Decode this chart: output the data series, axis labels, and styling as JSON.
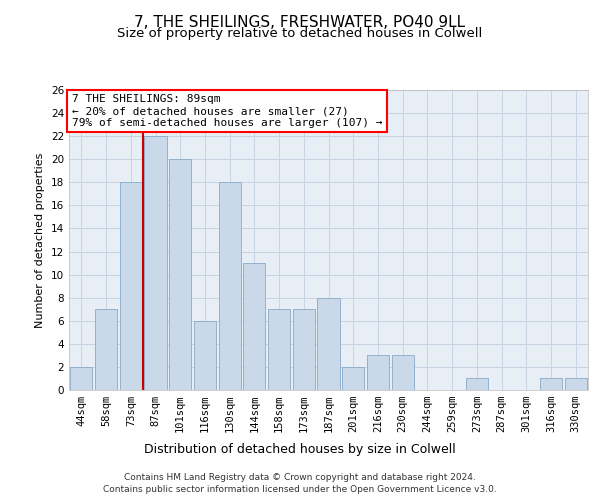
{
  "title1": "7, THE SHEILINGS, FRESHWATER, PO40 9LL",
  "title2": "Size of property relative to detached houses in Colwell",
  "xlabel": "Distribution of detached houses by size in Colwell",
  "ylabel": "Number of detached properties",
  "categories": [
    "44sqm",
    "58sqm",
    "73sqm",
    "87sqm",
    "101sqm",
    "116sqm",
    "130sqm",
    "144sqm",
    "158sqm",
    "173sqm",
    "187sqm",
    "201sqm",
    "216sqm",
    "230sqm",
    "244sqm",
    "259sqm",
    "273sqm",
    "287sqm",
    "301sqm",
    "316sqm",
    "330sqm"
  ],
  "values": [
    2,
    7,
    18,
    22,
    20,
    6,
    18,
    11,
    7,
    7,
    8,
    2,
    3,
    3,
    0,
    0,
    1,
    0,
    0,
    1,
    1
  ],
  "bar_color": "#c9d9ea",
  "bar_edgecolor": "#88aac8",
  "red_line_index": 3,
  "annotation_line1": "7 THE SHEILINGS: 89sqm",
  "annotation_line2": "← 20% of detached houses are smaller (27)",
  "annotation_line3": "79% of semi-detached houses are larger (107) →",
  "annotation_box_color": "white",
  "annotation_box_edgecolor": "red",
  "red_line_color": "#cc0000",
  "ylim": [
    0,
    26
  ],
  "yticks": [
    0,
    2,
    4,
    6,
    8,
    10,
    12,
    14,
    16,
    18,
    20,
    22,
    24,
    26
  ],
  "grid_color": "#c8d4e4",
  "footer1": "Contains HM Land Registry data © Crown copyright and database right 2024.",
  "footer2": "Contains public sector information licensed under the Open Government Licence v3.0.",
  "bg_color": "#e8eef6",
  "title1_fontsize": 11,
  "title2_fontsize": 9.5,
  "xlabel_fontsize": 9,
  "ylabel_fontsize": 8,
  "tick_fontsize": 7.5,
  "annotation_fontsize": 8,
  "footer_fontsize": 6.5
}
